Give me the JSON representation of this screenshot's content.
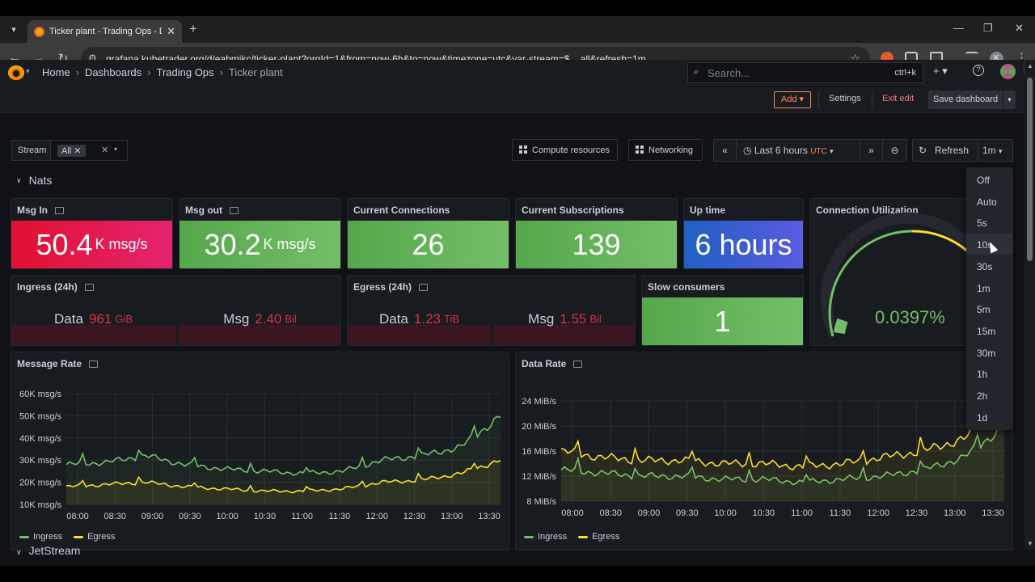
{
  "browser": {
    "tab_title": "Ticker plant - Trading Ops - Dashboards - Grafana",
    "url": "grafana.kubetrader.org/d/eabmjkc/ticker-plant?orgId=1&from=now-6h&to=now&timezone=utc&var-stream=$__all&refresh=1m",
    "profile_initial": "K"
  },
  "breadcrumbs": [
    "Home",
    "Dashboards",
    "Trading Ops",
    "Ticker plant"
  ],
  "search": {
    "placeholder": "Search...",
    "shortcut": "ctrl+k"
  },
  "editbar": {
    "add": "Add",
    "settings": "Settings",
    "exit": "Exit edit",
    "save": "Save dashboard"
  },
  "variable": {
    "label": "Stream",
    "value": "All"
  },
  "links": [
    "Compute resources",
    "Networking"
  ],
  "timepicker": {
    "range": "Last 6 hours",
    "tz": "UTC"
  },
  "refresh": {
    "label": "Refresh",
    "interval": "1m"
  },
  "row_title": "Nats",
  "next_row_title": "JetStream",
  "stats": {
    "msg_in": {
      "title": "Msg In",
      "value": "50.4",
      "unit": "K msg/s"
    },
    "msg_out": {
      "title": "Msg out",
      "value": "30.2",
      "unit": "K msg/s"
    },
    "connections": {
      "title": "Current Connections",
      "value": "26"
    },
    "subscriptions": {
      "title": "Current Subscriptions",
      "value": "139"
    },
    "uptime": {
      "title": "Up time",
      "value": "6 hours"
    },
    "utilization": {
      "title": "Connection Utilization",
      "value": "0.0397%",
      "percent": 0.0397
    },
    "ingress": {
      "title": "Ingress (24h)",
      "data_label": "Data",
      "data_value": "961",
      "data_unit": "GiB",
      "msg_label": "Msg",
      "msg_value": "2.40",
      "msg_unit": "Bil"
    },
    "egress": {
      "title": "Egress (24h)",
      "data_label": "Data",
      "data_value": "1.23",
      "data_unit": "TiB",
      "msg_label": "Msg",
      "msg_value": "1.55",
      "msg_unit": "Bil"
    },
    "slow": {
      "title": "Slow consumers",
      "value": "1"
    }
  },
  "refresh_options": [
    "Off",
    "Auto",
    "5s",
    "10s",
    "30s",
    "1m",
    "5m",
    "15m",
    "30m",
    "1h",
    "2h",
    "1d"
  ],
  "refresh_hovered": "10s",
  "colors": {
    "green": "#73bf69",
    "yellow": "#fade2a",
    "red": "#e02f44",
    "blue": "#3274d9"
  },
  "chart_data": [
    {
      "type": "line",
      "title": "Message Rate",
      "x": [
        "08:00",
        "08:30",
        "09:00",
        "09:30",
        "10:00",
        "10:30",
        "11:00",
        "11:30",
        "12:00",
        "12:30",
        "13:00",
        "13:30"
      ],
      "yticks": [
        "10K msg/s",
        "20K msg/s",
        "30K msg/s",
        "40K msg/s",
        "50K msg/s",
        "60K msg/s"
      ],
      "ylim": [
        10000,
        60000
      ],
      "series": [
        {
          "name": "Ingress",
          "color": "#73bf69",
          "values": [
            28000,
            29000,
            32000,
            28000,
            26000,
            25000,
            24000,
            25000,
            30000,
            32000,
            36000,
            50000
          ]
        },
        {
          "name": "Egress",
          "color": "#fade2a",
          "values": [
            18000,
            19000,
            20000,
            18000,
            17000,
            16000,
            16000,
            17000,
            20000,
            21000,
            24000,
            30000
          ]
        }
      ]
    },
    {
      "type": "line",
      "title": "Data Rate",
      "x": [
        "08:00",
        "08:30",
        "09:00",
        "09:30",
        "10:00",
        "10:30",
        "11:00",
        "11:30",
        "12:00",
        "12:30",
        "13:00",
        "13:30"
      ],
      "yticks": [
        "8 MiB/s",
        "12 MiB/s",
        "16 MiB/s",
        "20 MiB/s",
        "24 MiB/s"
      ],
      "ylim": [
        8,
        24
      ],
      "series": [
        {
          "name": "Ingress",
          "color": "#73bf69",
          "values": [
            13,
            12.5,
            12,
            12,
            11.5,
            11.5,
            11,
            11.5,
            12,
            13,
            15,
            20
          ]
        },
        {
          "name": "Egress",
          "color": "#fade2a",
          "values": [
            16,
            15,
            14.5,
            14.5,
            14,
            14,
            13.5,
            14,
            15,
            16,
            18,
            22
          ]
        }
      ]
    }
  ]
}
